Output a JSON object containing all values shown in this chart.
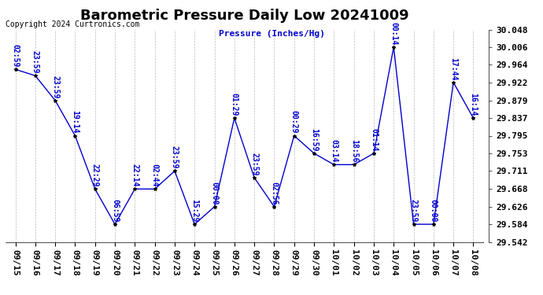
{
  "title": "Barometric Pressure Daily Low 20241009",
  "copyright": "Copyright 2024 Curtronics.com",
  "ylabel": "Pressure (Inches/Hg)",
  "dates": [
    "09/15",
    "09/16",
    "09/17",
    "09/18",
    "09/19",
    "09/20",
    "09/21",
    "09/22",
    "09/23",
    "09/24",
    "09/25",
    "09/26",
    "09/27",
    "09/28",
    "09/29",
    "09/30",
    "10/01",
    "10/02",
    "10/03",
    "10/04",
    "10/05",
    "10/06",
    "10/07",
    "10/08"
  ],
  "times": [
    "02:59",
    "23:59",
    "23:59",
    "19:14",
    "22:29",
    "06:59",
    "22:14",
    "02:44",
    "23:59",
    "15:29",
    "00:00",
    "01:29",
    "23:59",
    "02:56",
    "00:29",
    "16:59",
    "03:14",
    "18:56",
    "01:14",
    "00:14",
    "23:59",
    "00:00",
    "17:44",
    "16:14"
  ],
  "values": [
    29.953,
    29.938,
    29.879,
    29.795,
    29.668,
    29.584,
    29.668,
    29.668,
    29.711,
    29.584,
    29.626,
    29.837,
    29.695,
    29.626,
    29.795,
    29.753,
    29.726,
    29.726,
    29.753,
    30.006,
    29.584,
    29.584,
    29.922,
    29.837
  ],
  "ylim_min": 29.542,
  "ylim_max": 30.048,
  "yticks": [
    29.542,
    29.584,
    29.626,
    29.668,
    29.711,
    29.753,
    29.795,
    29.837,
    29.879,
    29.922,
    29.964,
    30.006,
    30.048
  ],
  "line_color": "#0000cc",
  "dot_color": "#000000",
  "label_color": "#0000cc",
  "background_color": "#ffffff",
  "grid_color": "#bbbbbb",
  "title_fontsize": 13,
  "tick_fontsize": 8,
  "copyright_fontsize": 7,
  "ylabel_fontsize": 8,
  "annotation_fontsize": 7
}
